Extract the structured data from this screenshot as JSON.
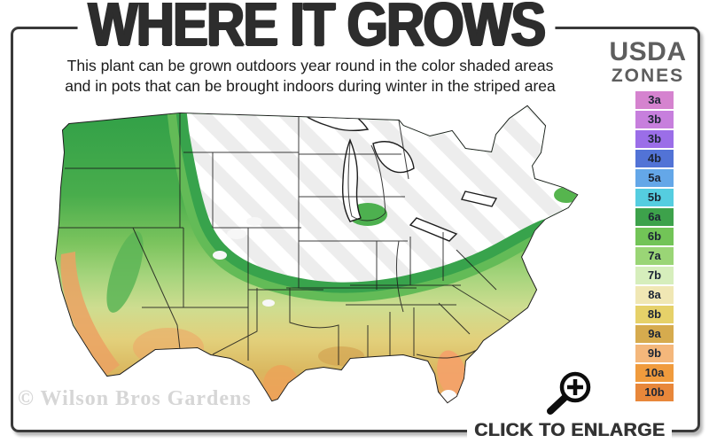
{
  "header": {
    "title": "WHERE IT GROWS",
    "subtitle_line1": "This plant can be grown outdoors year round in the color shaded areas",
    "subtitle_line2": "and in pots that can be brought indoors during winter in the striped area"
  },
  "legend": {
    "title_line1": "USDA",
    "title_line2": "ZONES",
    "zones": [
      {
        "label": "3a",
        "color": "#d583cf"
      },
      {
        "label": "3b",
        "color": "#c77fdd"
      },
      {
        "label": "3b",
        "color": "#9b6ee8"
      },
      {
        "label": "4b",
        "color": "#5273d6"
      },
      {
        "label": "5a",
        "color": "#64a7e8"
      },
      {
        "label": "5b",
        "color": "#55cde0"
      },
      {
        "label": "6a",
        "color": "#3da24b"
      },
      {
        "label": "6b",
        "color": "#72c457"
      },
      {
        "label": "7a",
        "color": "#9ad576"
      },
      {
        "label": "7b",
        "color": "#d6eebc"
      },
      {
        "label": "8a",
        "color": "#f0e7b4"
      },
      {
        "label": "8b",
        "color": "#e6d169"
      },
      {
        "label": "9a",
        "color": "#d6ab4e"
      },
      {
        "label": "9b",
        "color": "#f4b77b"
      },
      {
        "label": "10a",
        "color": "#f09b3d"
      },
      {
        "label": "10b",
        "color": "#e8873a"
      }
    ]
  },
  "map": {
    "watermark": "© Wilson Bros Gardens"
  },
  "footer": {
    "click_to_enlarge": "CLICK TO ENLARGE"
  },
  "colors": {
    "frame": "#3a3a3a",
    "title_text": "#2d2d2d",
    "legend_header_text": "#5e5e5e",
    "watermark_text": "#d6d6d6",
    "map_dark_green": "#38a34c",
    "map_orange": "#e8973f"
  }
}
